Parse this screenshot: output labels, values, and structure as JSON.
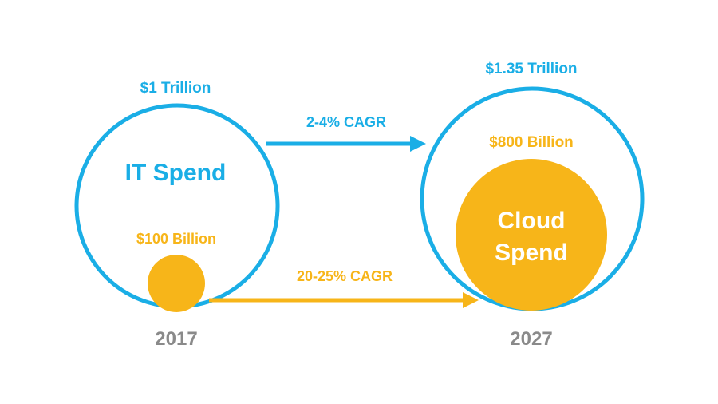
{
  "colors": {
    "it_blue": "#1aaee6",
    "cloud_orange": "#f7b519",
    "year_gray": "#8a8a8a",
    "cloud_text": "#ffffff"
  },
  "left": {
    "top_value": "$1 Trillion",
    "circle_label": "IT Spend",
    "small_value": "$100 Billion",
    "year": "2017"
  },
  "right": {
    "top_value": "$1.35 Trillion",
    "inner_value": "$800 Billion",
    "cloud_label_line1": "Cloud",
    "cloud_label_line2": "Spend",
    "year": "2027"
  },
  "arrows": {
    "it_growth": "2-4% CAGR",
    "cloud_growth": "20-25% CAGR"
  }
}
